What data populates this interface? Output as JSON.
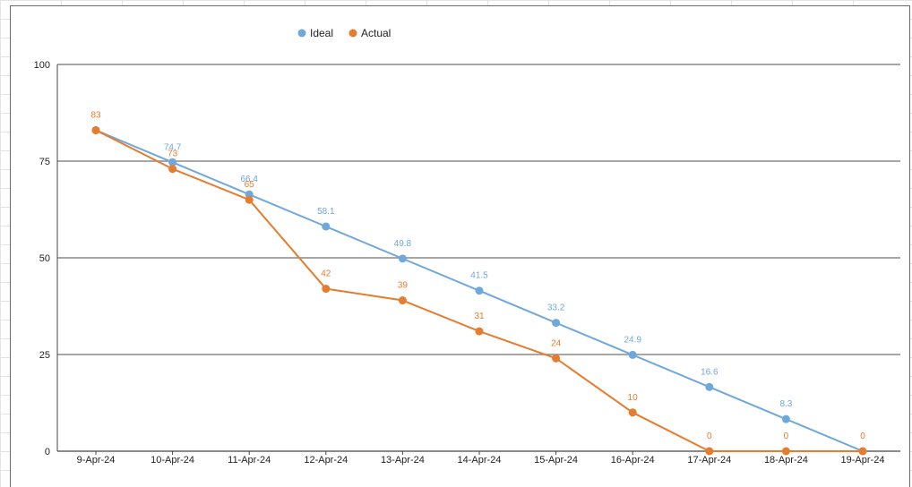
{
  "chart_data": {
    "type": "line",
    "categories": [
      "9-Apr-24",
      "10-Apr-24",
      "11-Apr-24",
      "12-Apr-24",
      "13-Apr-24",
      "14-Apr-24",
      "15-Apr-24",
      "16-Apr-24",
      "17-Apr-24",
      "18-Apr-24",
      "19-Apr-24"
    ],
    "series": [
      {
        "name": "Ideal",
        "color": "#6fa8dc",
        "values": [
          83,
          74.7,
          66.4,
          58.1,
          49.8,
          41.5,
          33.2,
          24.9,
          16.6,
          8.3,
          0
        ],
        "labels": [
          "",
          "74.7",
          "66.4",
          "58.1",
          "49.8",
          "41.5",
          "33.2",
          "24.9",
          "16.6",
          "8.3",
          ""
        ]
      },
      {
        "name": "Actual",
        "color": "#e67c2e",
        "values": [
          83,
          73,
          65,
          42,
          39,
          31,
          24,
          10,
          0,
          0,
          0
        ],
        "labels": [
          "83",
          "73",
          "65",
          "42",
          "39",
          "31",
          "24",
          "10",
          "0",
          "0",
          "0"
        ]
      }
    ],
    "yticks": [
      "0",
      "25",
      "50",
      "75",
      "100"
    ],
    "ylim": [
      0,
      100
    ],
    "grid": true,
    "legend": "top-left"
  }
}
